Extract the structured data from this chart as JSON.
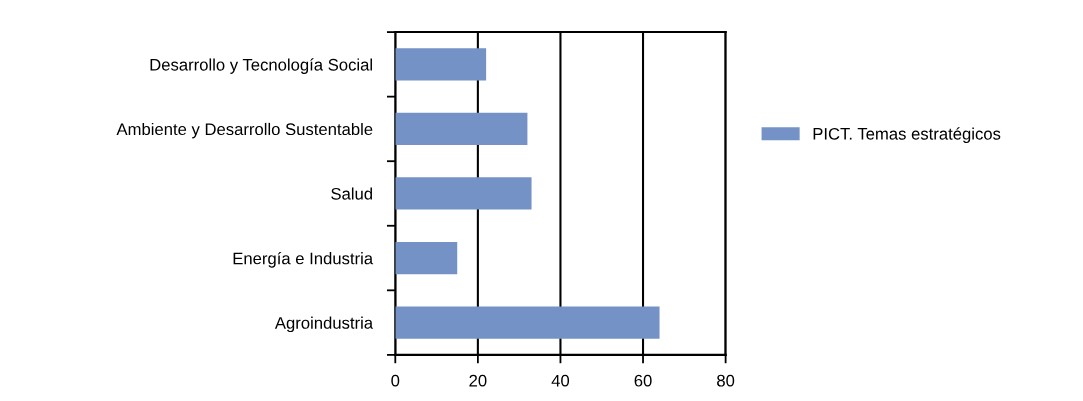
{
  "chart_data": {
    "type": "bar",
    "orientation": "horizontal",
    "categories": [
      "Desarrollo y Tecnología Social",
      "Ambiente y Desarrollo Sustentable",
      "Salud",
      "Energía e Industria",
      "Agroindustria"
    ],
    "series": [
      {
        "name": "PICT. Temas estratégicos",
        "color": "#7492c6",
        "values": [
          22,
          32,
          33,
          15,
          64
        ]
      }
    ],
    "xlim": [
      0,
      80
    ],
    "xticks": [
      0,
      20,
      40,
      60,
      80
    ],
    "grid": "x",
    "legend": "right"
  }
}
